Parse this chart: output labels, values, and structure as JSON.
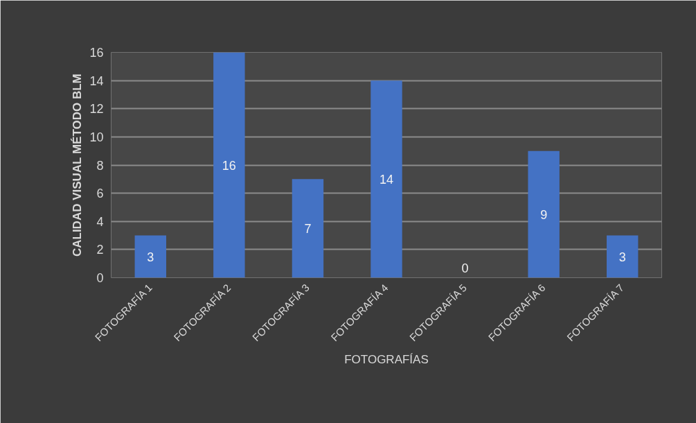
{
  "chart_data": {
    "type": "bar",
    "xlabel": "FOTOGRAFÍAS",
    "ylabel": "CALIDAD VISUAL MÉTODO BLM",
    "categories": [
      "FOTOGRAFÍA 1",
      "FOTOGRAFÍA 2",
      "FOTOGRAFÍA 3",
      "FOTOGRAFÍA 4",
      "FOTOGRAFÍA 5",
      "FOTOGRAFÍA 6",
      "FOTOGRAFÍA 7"
    ],
    "values": [
      3,
      16,
      7,
      14,
      0,
      9,
      3
    ],
    "color": "#4472c4",
    "ylim": [
      0,
      16
    ],
    "yticks": [
      0,
      2,
      4,
      6,
      8,
      10,
      12,
      14,
      16
    ],
    "grid": "y",
    "data_labels": true
  }
}
